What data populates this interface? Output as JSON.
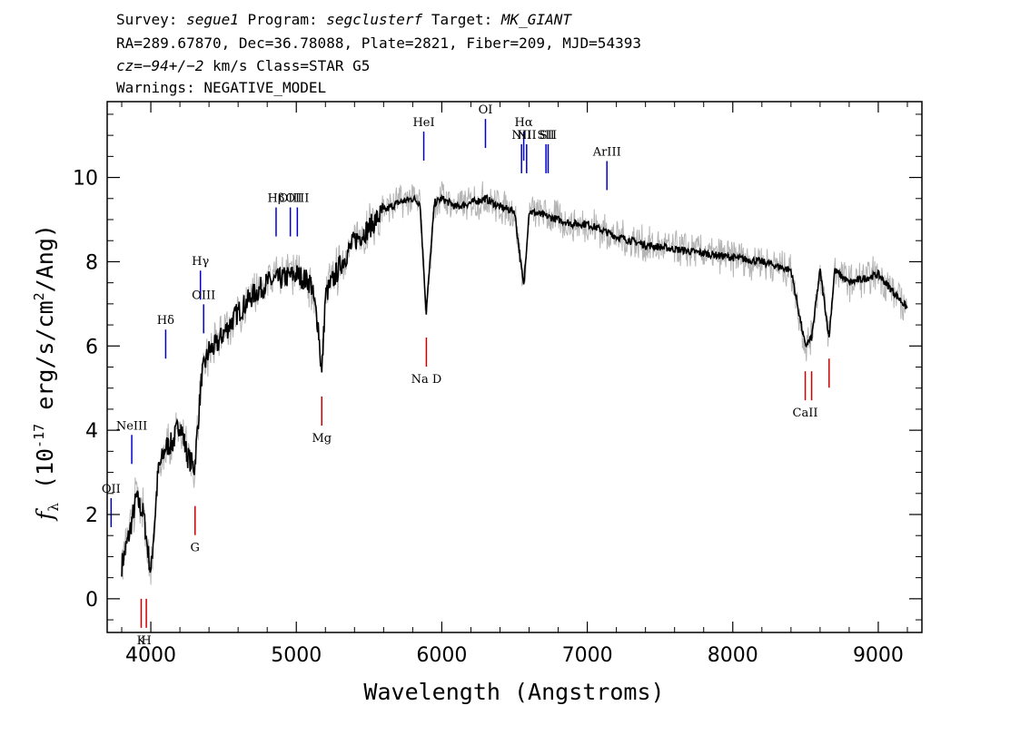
{
  "header": {
    "line1": {
      "survey_label": "Survey:",
      "survey": "segue1",
      "program_label": "Program:",
      "program": "segclusterf",
      "target_label": "Target:",
      "target": "MK_GIANT"
    },
    "line2": "RA=289.67870, Dec=36.78088, Plate=2821, Fiber=209, MJD=54393",
    "line3": {
      "cz_label": "cz=",
      "cz": "−94+/−2",
      "cz_unit": "km/s",
      "class": "Class=STAR G5"
    },
    "line4": "Warnings: NEGATIVE_MODEL"
  },
  "chart_data": {
    "type": "line",
    "xlabel": "Wavelength (Angstroms)",
    "ylabel_text": "(10",
    "ylabel_exp": "-17",
    "ylabel_units": "erg/s/cm",
    "ylabel_tail": "/Ang)",
    "xlim": [
      3700,
      9300
    ],
    "ylim": [
      -0.8,
      11.8
    ],
    "x_ticks": [
      4000,
      5000,
      6000,
      7000,
      8000,
      9000
    ],
    "y_ticks": [
      0,
      2,
      4,
      6,
      8,
      10
    ],
    "grid": false,
    "colors": {
      "flux": "#000000",
      "error": "#b4b4b4",
      "emission": "#0000cc",
      "absorption": "#cc0000"
    },
    "series": [
      {
        "x": [
          3800,
          3850,
          3900,
          3950,
          4000,
          4050,
          4100,
          4150,
          4200,
          4250,
          4300,
          4350,
          4400,
          4450,
          4500,
          4600,
          4700,
          4800,
          4900,
          5000,
          5100,
          5150,
          5175,
          5200,
          5300,
          5400,
          5500,
          5600,
          5700,
          5800,
          5850,
          5893,
          5950,
          6000,
          6100,
          6200,
          6300,
          6400,
          6500,
          6563,
          6600,
          6700,
          6800,
          6900,
          7000,
          7200,
          7400,
          7600,
          7800,
          8000,
          8200,
          8400,
          8498,
          8542,
          8600,
          8662,
          8700,
          8800,
          8900,
          9000,
          9100,
          9200
        ],
        "y": [
          0.8,
          1.5,
          2.4,
          2.0,
          0.6,
          3.0,
          3.6,
          3.7,
          4.2,
          3.4,
          3.1,
          5.3,
          5.9,
          6.0,
          6.3,
          6.8,
          7.2,
          7.5,
          7.6,
          7.7,
          7.5,
          6.5,
          5.3,
          7.2,
          7.9,
          8.5,
          8.8,
          9.2,
          9.4,
          9.5,
          9.4,
          6.8,
          9.4,
          9.5,
          9.3,
          9.4,
          9.5,
          9.3,
          9.2,
          7.4,
          9.2,
          9.1,
          9.0,
          8.9,
          8.9,
          8.6,
          8.4,
          8.3,
          8.2,
          8.1,
          8.0,
          7.8,
          6.0,
          6.2,
          7.8,
          6.2,
          7.8,
          7.5,
          7.6,
          7.7,
          7.3,
          6.9
        ]
      }
    ],
    "emission_lines": [
      {
        "label": "OII",
        "x": 3727,
        "y": 1.7
      },
      {
        "label": "NeIII",
        "x": 3869,
        "y": 3.2
      },
      {
        "label": "Hδ",
        "x": 4102,
        "y": 5.7
      },
      {
        "label": "Hγ",
        "x": 4341,
        "y": 7.1
      },
      {
        "label": "OIII",
        "x": 4363,
        "y": 6.3
      },
      {
        "label": "Hβ",
        "x": 4861,
        "y": 8.6
      },
      {
        "label": "OIII",
        "x": 4959,
        "y": 8.6
      },
      {
        "label": "OIII",
        "x": 5007,
        "y": 8.6
      },
      {
        "label": "HeI",
        "x": 5876,
        "y": 10.4
      },
      {
        "label": "OI",
        "x": 6300,
        "y": 10.7
      },
      {
        "label": "NII",
        "x": 6548,
        "y": 10.1
      },
      {
        "label": "Hα",
        "x": 6563,
        "y": 10.4
      },
      {
        "label": "NII",
        "x": 6583,
        "y": 10.1
      },
      {
        "label": "SII",
        "x": 6716,
        "y": 10.1
      },
      {
        "label": "SII",
        "x": 6731,
        "y": 10.1
      },
      {
        "label": "ArIII",
        "x": 7135,
        "y": 9.7
      }
    ],
    "absorption_lines": [
      {
        "label": "K",
        "x": 3934,
        "y": 0.0
      },
      {
        "label": "H",
        "x": 3969,
        "y": 0.0
      },
      {
        "label": "G",
        "x": 4304,
        "y": 2.2
      },
      {
        "label": "Mg",
        "x": 5175,
        "y": 4.8
      },
      {
        "label": "Na D",
        "x": 5894,
        "y": 6.2
      },
      {
        "label": "CaII",
        "x": 8498,
        "y": 5.4
      },
      {
        "label": "CaII",
        "x": 8542,
        "y": 5.4
      },
      {
        "label": "CaII",
        "x": 8662,
        "y": 5.7
      }
    ]
  }
}
